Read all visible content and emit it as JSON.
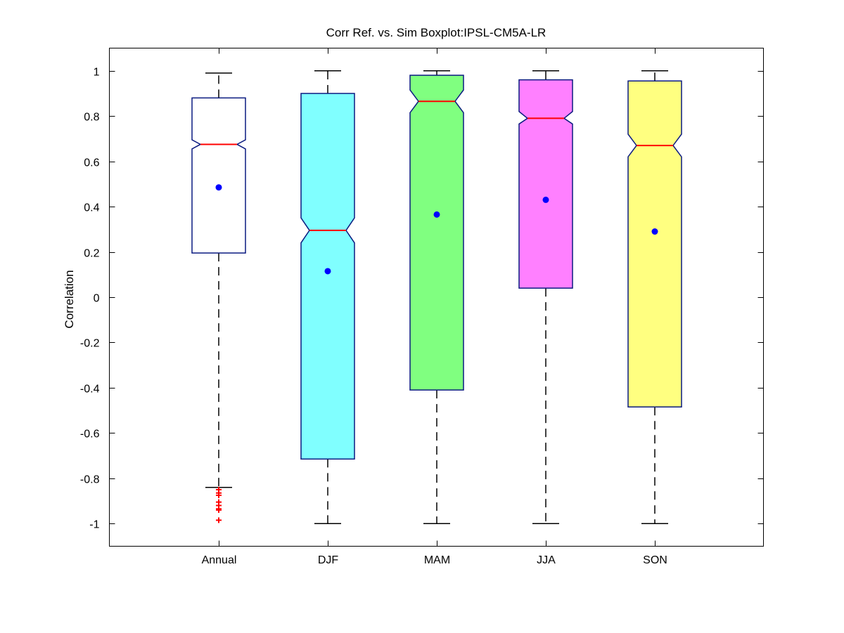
{
  "chart_data": {
    "type": "boxplot",
    "title": "Corr Ref. vs. Sim Boxplot:IPSL-CM5A-LR",
    "xlabel": "",
    "ylabel": "Correlation",
    "ylim": [
      -1.1,
      1.1
    ],
    "yticks": [
      1,
      0.8,
      0.6,
      0.4,
      0.2,
      0,
      -0.2,
      -0.4,
      -0.6,
      -0.8,
      -1
    ],
    "ytick_labels": [
      "1",
      "0.8",
      "0.6",
      "0.4",
      "0.2",
      "0",
      "-0.2",
      "-0.4",
      "-0.6",
      "-0.8",
      "-1"
    ],
    "categories": [
      "Annual",
      "DJF",
      "MAM",
      "JJA",
      "SON"
    ],
    "notched": true,
    "grid": false,
    "colors": {
      "box_edge": "#0a1a80",
      "median": "#ff0000",
      "mean_marker": "#0000ff",
      "outlier": "#ff0000",
      "whisker": "#000000"
    },
    "boxes": [
      {
        "category": "Annual",
        "fill": "#ffffff",
        "whisker_low": -0.84,
        "q1": 0.195,
        "median": 0.675,
        "q3": 0.88,
        "whisker_high": 0.99,
        "notch_low": 0.655,
        "notch_high": 0.695,
        "mean": 0.485,
        "outliers": [
          -0.85,
          -0.865,
          -0.875,
          -0.905,
          -0.92,
          -0.935,
          -0.94,
          -0.985
        ]
      },
      {
        "category": "DJF",
        "fill": "#80ffff",
        "whisker_low": -1.0,
        "q1": -0.715,
        "median": 0.295,
        "q3": 0.9,
        "whisker_high": 1.0,
        "notch_low": 0.24,
        "notch_high": 0.35,
        "mean": 0.115,
        "outliers": []
      },
      {
        "category": "MAM",
        "fill": "#80ff80",
        "whisker_low": -1.0,
        "q1": -0.41,
        "median": 0.865,
        "q3": 0.98,
        "whisker_high": 1.0,
        "notch_low": 0.815,
        "notch_high": 0.915,
        "mean": 0.365,
        "outliers": []
      },
      {
        "category": "JJA",
        "fill": "#ff80ff",
        "whisker_low": -1.0,
        "q1": 0.04,
        "median": 0.79,
        "q3": 0.96,
        "whisker_high": 1.0,
        "notch_low": 0.765,
        "notch_high": 0.82,
        "mean": 0.43,
        "outliers": []
      },
      {
        "category": "SON",
        "fill": "#ffff80",
        "whisker_low": -1.0,
        "q1": -0.485,
        "median": 0.67,
        "q3": 0.955,
        "whisker_high": 1.0,
        "notch_low": 0.62,
        "notch_high": 0.72,
        "mean": 0.29,
        "outliers": []
      }
    ]
  }
}
